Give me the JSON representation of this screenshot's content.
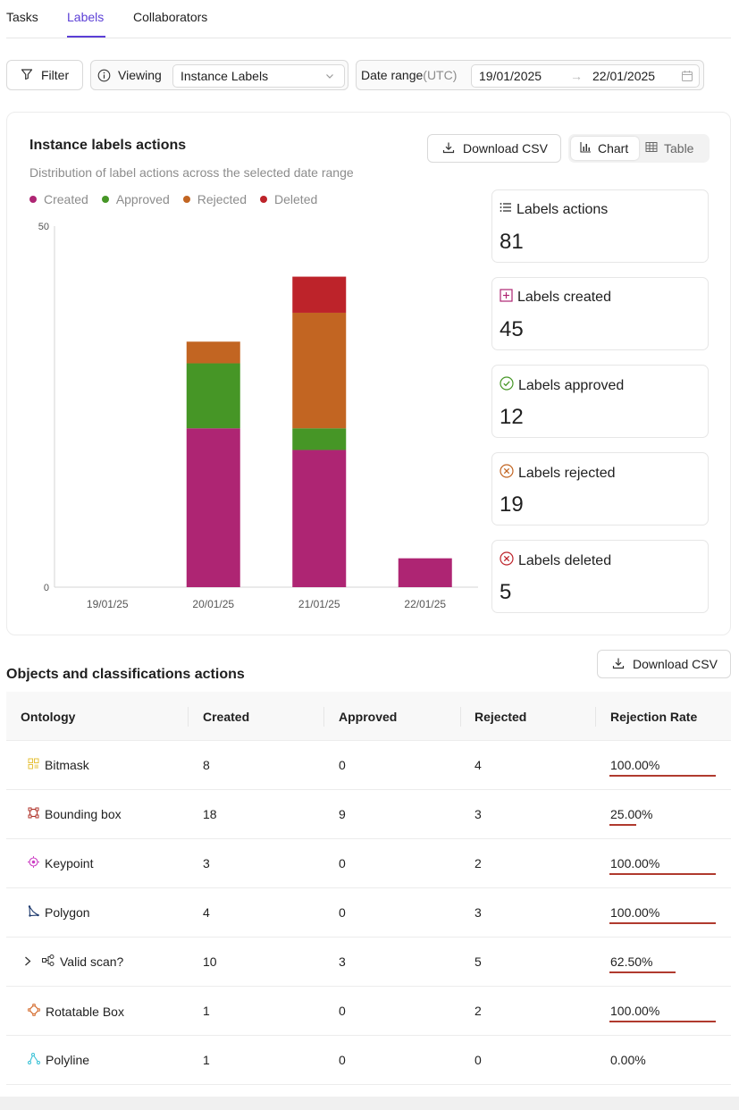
{
  "tabs": [
    {
      "label": "Tasks"
    },
    {
      "label": "Labels"
    },
    {
      "label": "Collaborators"
    }
  ],
  "toolbar": {
    "filter_label": "Filter",
    "viewing_label": "Viewing",
    "viewing_value": "Instance Labels",
    "date_label": "Date range",
    "date_tz": "(UTC)",
    "date_from": "19/01/2025",
    "date_arrow": "→",
    "date_to": "22/01/2025"
  },
  "card": {
    "title": "Instance labels actions",
    "subtitle": "Distribution of label actions across the selected date range",
    "download_label": "Download CSV",
    "view_chart_label": "Chart",
    "view_table_label": "Table"
  },
  "chart_data": {
    "type": "bar",
    "stacked": true,
    "categories": [
      "19/01/25",
      "20/01/25",
      "21/01/25",
      "22/01/25"
    ],
    "series": [
      {
        "name": "Created",
        "color": "#ae2573",
        "values": [
          0,
          22,
          19,
          4
        ]
      },
      {
        "name": "Approved",
        "color": "#469626",
        "values": [
          0,
          9,
          3,
          0
        ]
      },
      {
        "name": "Rejected",
        "color": "#c26522",
        "values": [
          0,
          3,
          16,
          0
        ]
      },
      {
        "name": "Deleted",
        "color": "#bd232a",
        "values": [
          0,
          0,
          5,
          0
        ]
      }
    ],
    "yticks": [
      "0",
      "50"
    ],
    "ylim": [
      0,
      50
    ],
    "grid": false,
    "legend_position": "top-left"
  },
  "stats": [
    {
      "label": "Labels actions",
      "value": "81",
      "icon": "list-icon",
      "color": "#1f1f1f"
    },
    {
      "label": "Labels created",
      "value": "45",
      "icon": "plus-square-icon",
      "color": "#ae2573"
    },
    {
      "label": "Labels approved",
      "value": "12",
      "icon": "check-circle-icon",
      "color": "#469626"
    },
    {
      "label": "Labels rejected",
      "value": "19",
      "icon": "x-circle-icon",
      "color": "#c26522"
    },
    {
      "label": "Labels deleted",
      "value": "5",
      "icon": "x-circle-icon",
      "color": "#bd232a"
    }
  ],
  "objects": {
    "title": "Objects and classifications actions",
    "download_label": "Download CSV",
    "headers": [
      "Ontology",
      "Created",
      "Approved",
      "Rejected",
      "Rejection Rate"
    ],
    "rows": [
      {
        "name": "Bitmask",
        "icon": "bitmask-icon",
        "icon_color": "#e6c13a",
        "created": "8",
        "approved": "0",
        "rejected": "4",
        "rate": "100.00%",
        "rate_fraction": 1.0,
        "expandable": false
      },
      {
        "name": "Bounding box",
        "icon": "bounding-box-icon",
        "icon_color": "#b0352c",
        "created": "18",
        "approved": "9",
        "rejected": "3",
        "rate": "25.00%",
        "rate_fraction": 0.25,
        "expandable": false
      },
      {
        "name": "Keypoint",
        "icon": "keypoint-icon",
        "icon_color": "#cc3fc4",
        "created": "3",
        "approved": "0",
        "rejected": "2",
        "rate": "100.00%",
        "rate_fraction": 1.0,
        "expandable": false
      },
      {
        "name": "Polygon",
        "icon": "polygon-icon",
        "icon_color": "#1e3a6e",
        "created": "4",
        "approved": "0",
        "rejected": "3",
        "rate": "100.00%",
        "rate_fraction": 1.0,
        "expandable": false
      },
      {
        "name": "Valid scan?",
        "icon": "classification-icon",
        "icon_color": "#333333",
        "created": "10",
        "approved": "3",
        "rejected": "5",
        "rate": "62.50%",
        "rate_fraction": 0.625,
        "expandable": true
      },
      {
        "name": "Rotatable Box",
        "icon": "rotatable-box-icon",
        "icon_color": "#d4692a",
        "created": "1",
        "approved": "0",
        "rejected": "2",
        "rate": "100.00%",
        "rate_fraction": 1.0,
        "expandable": false
      },
      {
        "name": "Polyline",
        "icon": "polyline-icon",
        "icon_color": "#38c1d6",
        "created": "1",
        "approved": "0",
        "rejected": "0",
        "rate": "0.00%",
        "rate_fraction": 0,
        "expandable": false
      }
    ]
  }
}
